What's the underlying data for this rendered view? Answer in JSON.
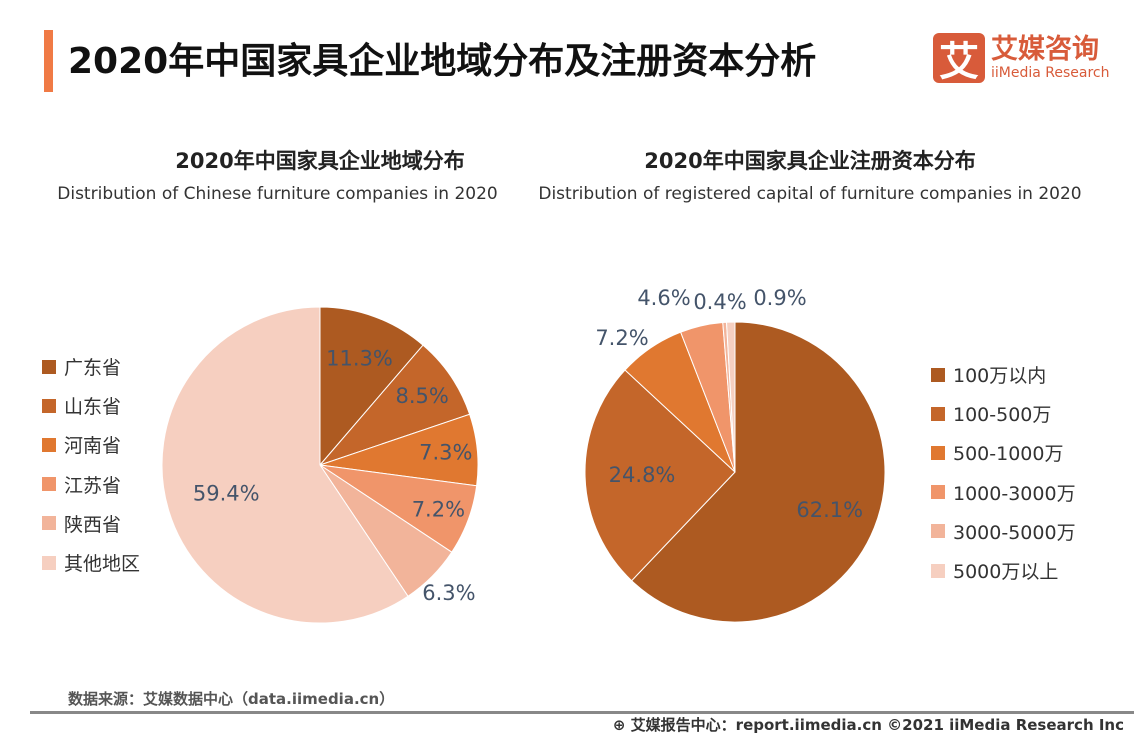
{
  "title": "2020年中国家具企业地域分布及注册资本分析",
  "logo": {
    "mark": "艾",
    "cn": "艾媒咨询",
    "en": "iiMedia Research"
  },
  "source": "数据来源：艾媒数据中心（data.iimedia.cn）",
  "footer": "艾媒报告中心：report.iimedia.cn  ©2021  iiMedia Research  Inc",
  "chart_data": [
    {
      "type": "pie",
      "title": "2020年中国家具企业地域分布",
      "subtitle": "Distribution of Chinese furniture companies in 2020",
      "categories": [
        "广东省",
        "山东省",
        "河南省",
        "江苏省",
        "陕西省",
        "其他地区"
      ],
      "values": [
        11.3,
        8.5,
        7.3,
        7.2,
        6.3,
        59.4
      ],
      "labels": [
        "11.3%",
        "8.5%",
        "7.3%",
        "7.2%",
        "6.3%",
        "59.4%"
      ],
      "colors": [
        "#ad5a21",
        "#c4662a",
        "#e07830",
        "#f0956a",
        "#f2b49a",
        "#f6cfc0"
      ],
      "legend": "left"
    },
    {
      "type": "pie",
      "title": "2020年中国家具企业注册资本分布",
      "subtitle": "Distribution of registered capital of furniture companies in 2020",
      "categories": [
        "100万以内",
        "100-500万",
        "500-1000万",
        "1000-3000万",
        "3000-5000万",
        "5000万以上"
      ],
      "values": [
        62.1,
        24.8,
        7.2,
        4.6,
        0.4,
        0.9
      ],
      "labels": [
        "62.1%",
        "24.8%",
        "7.2%",
        "4.6%",
        "0.4%",
        "0.9%"
      ],
      "colors": [
        "#ad5a21",
        "#c4662a",
        "#e07830",
        "#f0956a",
        "#f2b49a",
        "#f6cfc0"
      ],
      "legend": "right"
    }
  ]
}
